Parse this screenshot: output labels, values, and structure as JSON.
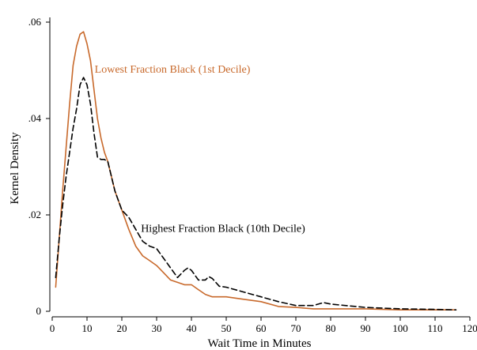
{
  "chart_data": {
    "type": "line",
    "xlabel": "Wait Time in Minutes",
    "ylabel": "Kernel Density",
    "xlim": [
      0,
      120
    ],
    "ylim": [
      0,
      0.06
    ],
    "xticks": [
      0,
      10,
      20,
      30,
      40,
      50,
      60,
      70,
      80,
      90,
      100,
      110,
      120
    ],
    "xtick_labels": [
      "0",
      "10",
      "20",
      "30",
      "40",
      "50",
      "60",
      "70",
      "80",
      "90",
      "100",
      "110",
      "120"
    ],
    "yticks": [
      0,
      0.02,
      0.04,
      0.06
    ],
    "ytick_labels": [
      "0",
      ".02",
      ".04",
      ".06"
    ],
    "grid": false,
    "legend": "none",
    "series": [
      {
        "name": "Lowest Fraction Black (1st Decile)",
        "color": "#c8692b",
        "style": "solid",
        "x": [
          1,
          2,
          3,
          4,
          5,
          6,
          7,
          8,
          9,
          10,
          11,
          12,
          13,
          14,
          15,
          16,
          17,
          18,
          20,
          22,
          24,
          26,
          28,
          30,
          32,
          34,
          36,
          38,
          40,
          42,
          44,
          46,
          48,
          50,
          55,
          60,
          65,
          70,
          75,
          80,
          90,
          100,
          110,
          116
        ],
        "y": [
          0.005,
          0.015,
          0.025,
          0.034,
          0.043,
          0.051,
          0.055,
          0.0575,
          0.058,
          0.0555,
          0.052,
          0.046,
          0.04,
          0.036,
          0.033,
          0.031,
          0.028,
          0.025,
          0.021,
          0.017,
          0.0135,
          0.0115,
          0.0105,
          0.0095,
          0.008,
          0.0065,
          0.006,
          0.0055,
          0.0055,
          0.0045,
          0.0035,
          0.003,
          0.003,
          0.003,
          0.0025,
          0.002,
          0.001,
          0.0008,
          0.0005,
          0.0005,
          0.0005,
          0.0003,
          0.0003,
          0.0003
        ]
      },
      {
        "name": "Highest Fraction Black (10th Decile)",
        "color": "#000000",
        "style": "dashed",
        "x": [
          1,
          2,
          3,
          4,
          5,
          6,
          7,
          8,
          9,
          10,
          11,
          12,
          13,
          14,
          15,
          16,
          17,
          18,
          20,
          22,
          24,
          26,
          28,
          30,
          32,
          34,
          36,
          38,
          39,
          40,
          42,
          44,
          45,
          46,
          48,
          50,
          55,
          60,
          65,
          70,
          75,
          78,
          80,
          90,
          100,
          110,
          116
        ],
        "y": [
          0.007,
          0.015,
          0.022,
          0.028,
          0.033,
          0.038,
          0.042,
          0.047,
          0.0485,
          0.047,
          0.043,
          0.037,
          0.032,
          0.0315,
          0.0315,
          0.031,
          0.028,
          0.025,
          0.021,
          0.0195,
          0.017,
          0.0145,
          0.0135,
          0.013,
          0.011,
          0.009,
          0.007,
          0.0085,
          0.009,
          0.0085,
          0.0065,
          0.0065,
          0.0072,
          0.0068,
          0.0052,
          0.005,
          0.004,
          0.003,
          0.002,
          0.0012,
          0.0012,
          0.0018,
          0.0015,
          0.0008,
          0.0005,
          0.0004,
          0.0003
        ]
      }
    ],
    "annotations": [
      {
        "text": "Lowest Fraction Black (1st Decile)",
        "x": 12.2,
        "y": 0.0495,
        "series": 0
      },
      {
        "text": "Highest Fraction Black (10th Decile)",
        "x": 25.5,
        "y": 0.0165,
        "series": 1
      }
    ]
  }
}
